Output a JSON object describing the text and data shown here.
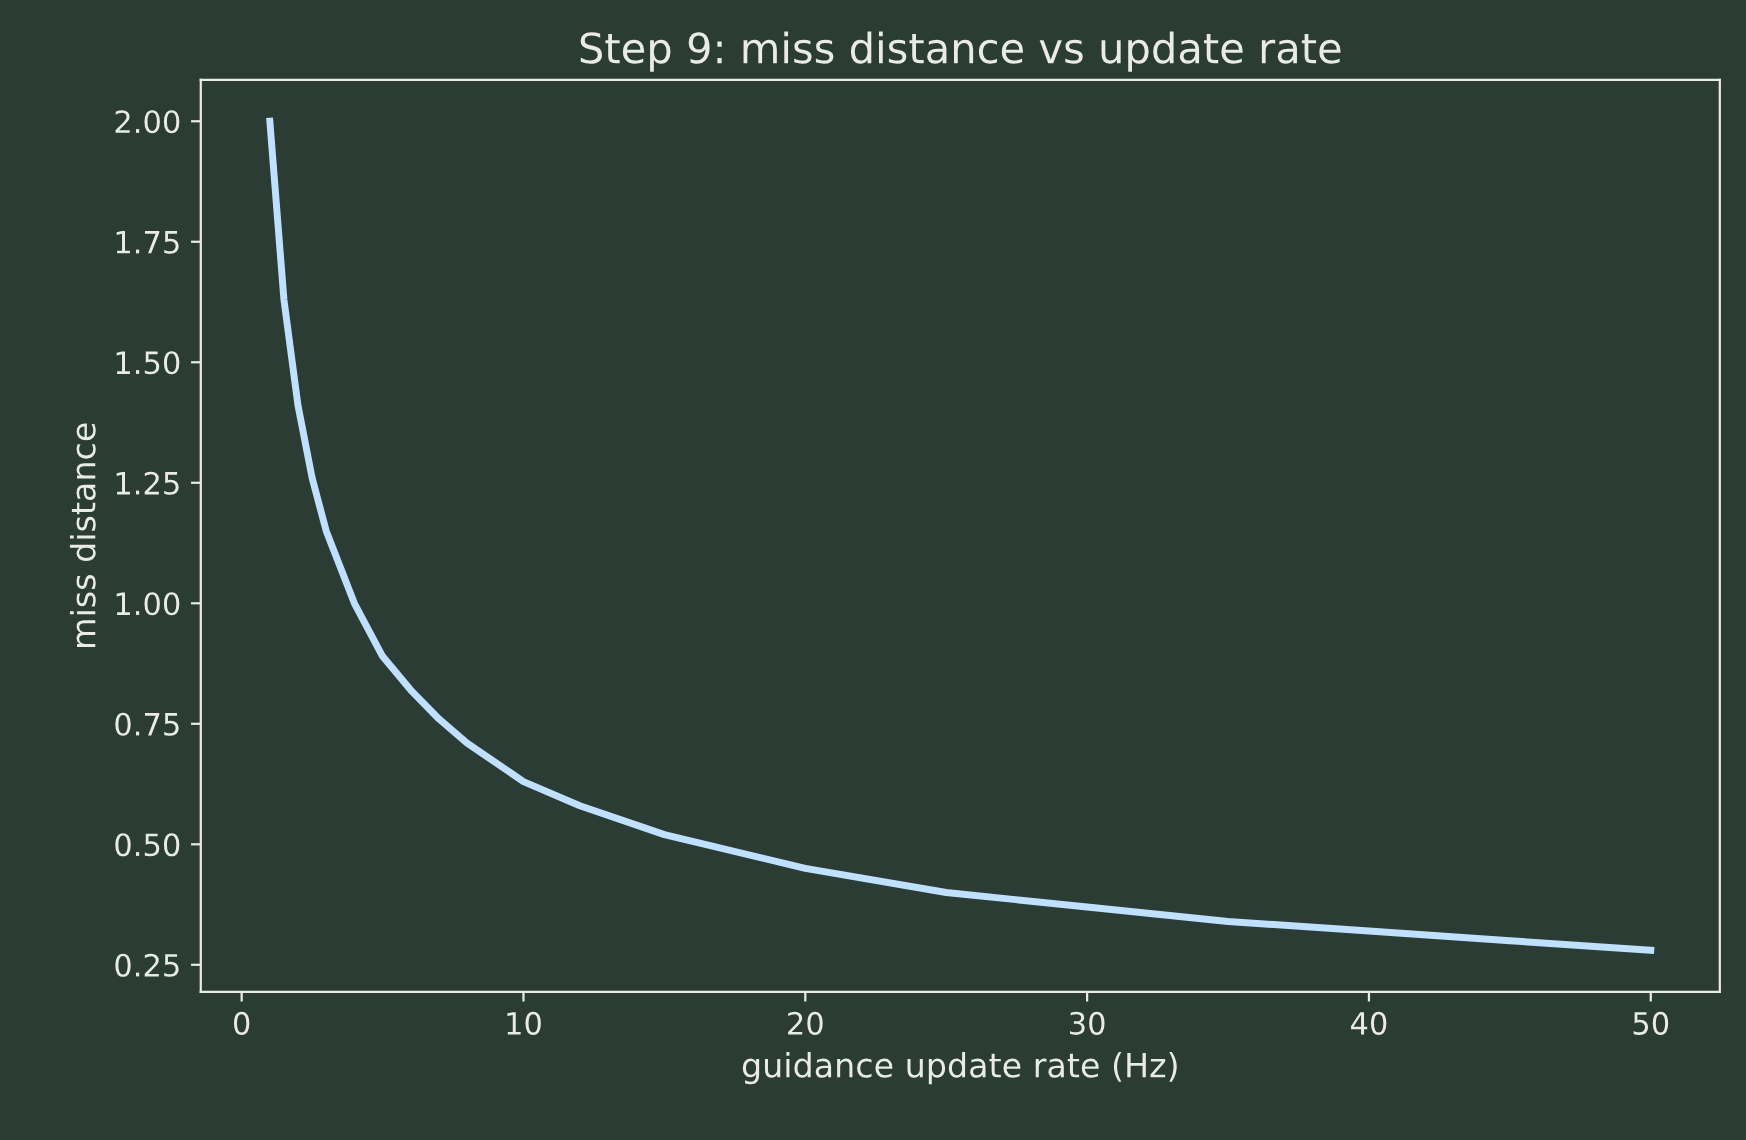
{
  "chart_data": {
    "type": "line",
    "title": "Step 9: miss distance vs update rate",
    "xlabel": "guidance update rate (Hz)",
    "ylabel": "miss distance",
    "x": [
      1,
      1.5,
      2,
      2.5,
      3,
      4,
      5,
      6,
      7,
      8,
      10,
      12,
      15,
      20,
      25,
      30,
      35,
      40,
      45,
      50
    ],
    "series": [
      {
        "color": "#bfe0ff",
        "values": [
          2.0,
          1.63,
          1.41,
          1.26,
          1.15,
          1.0,
          0.89,
          0.82,
          0.76,
          0.71,
          0.63,
          0.58,
          0.52,
          0.45,
          0.4,
          0.37,
          0.34,
          0.32,
          0.3,
          0.28
        ]
      }
    ],
    "xlim": [
      -1.45,
      52.45
    ],
    "ylim": [
      0.194,
      2.086
    ],
    "xticks": [
      0,
      10,
      20,
      30,
      40,
      50
    ],
    "yticks": [
      {
        "value": 0.25,
        "label": "0.25"
      },
      {
        "value": 0.5,
        "label": "0.50"
      },
      {
        "value": 0.75,
        "label": "0.75"
      },
      {
        "value": 1.0,
        "label": "1.00"
      },
      {
        "value": 1.25,
        "label": "1.25"
      },
      {
        "value": 1.5,
        "label": "1.50"
      },
      {
        "value": 1.75,
        "label": "1.75"
      },
      {
        "value": 2.0,
        "label": "2.00"
      }
    ],
    "grid": false,
    "legend": false,
    "marker": "none",
    "line_style": "solid"
  }
}
